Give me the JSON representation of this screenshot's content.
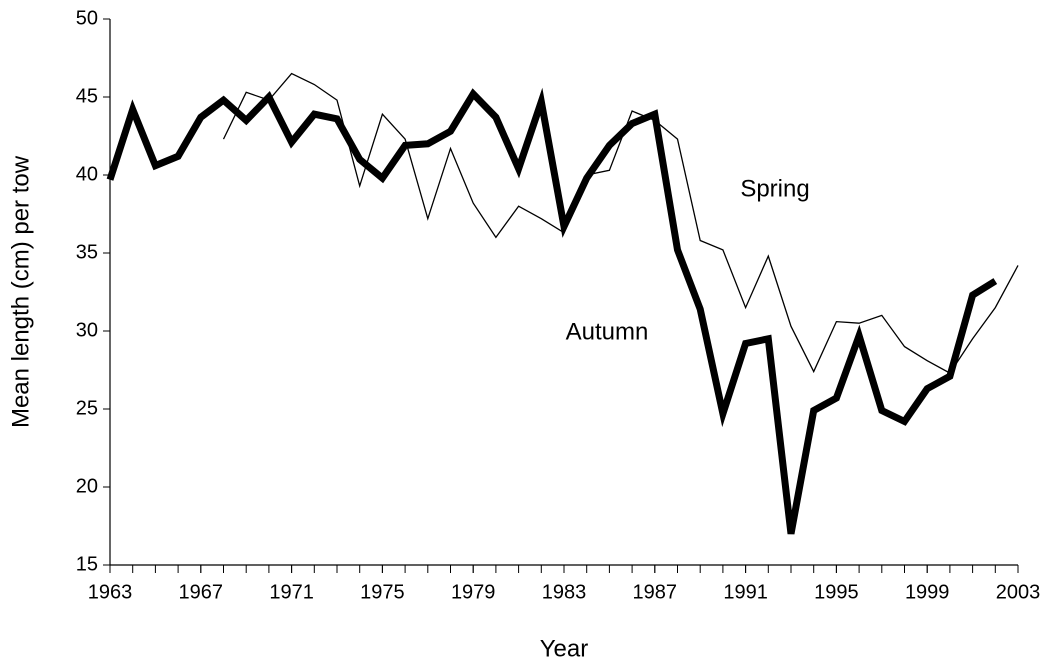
{
  "chart_data": {
    "type": "line",
    "x_label": "Year",
    "y_label": "Mean length (cm) per tow",
    "x": [
      1963,
      1964,
      1965,
      1966,
      1967,
      1968,
      1969,
      1970,
      1971,
      1972,
      1973,
      1974,
      1975,
      1976,
      1977,
      1978,
      1979,
      1980,
      1981,
      1982,
      1983,
      1984,
      1985,
      1986,
      1987,
      1988,
      1989,
      1990,
      1991,
      1992,
      1993,
      1994,
      1995,
      1996,
      1997,
      1998,
      1999,
      2000,
      2001,
      2002,
      2003
    ],
    "series": [
      {
        "name": "Spring",
        "color": "#000000",
        "width": "thin",
        "values": [
          null,
          null,
          null,
          null,
          null,
          42.3,
          45.3,
          44.8,
          46.5,
          45.8,
          44.8,
          39.3,
          43.9,
          42.3,
          37.2,
          41.7,
          38.2,
          36.0,
          38.0,
          37.2,
          36.3,
          40.0,
          40.3,
          44.1,
          43.5,
          42.3,
          35.8,
          35.2,
          31.5,
          34.8,
          30.3,
          27.4,
          30.6,
          30.5,
          31.0,
          29.0,
          28.1,
          27.3,
          29.5,
          31.5,
          34.2
        ]
      },
      {
        "name": "Autumn",
        "color": "#000000",
        "width": "thick",
        "values": [
          39.7,
          44.2,
          40.6,
          41.2,
          43.7,
          44.8,
          43.5,
          45.0,
          42.1,
          43.9,
          43.6,
          41.0,
          39.8,
          41.9,
          42.0,
          42.8,
          45.2,
          43.7,
          40.4,
          44.7,
          36.7,
          39.8,
          41.9,
          43.3,
          43.9,
          35.2,
          31.4,
          24.7,
          29.2,
          29.5,
          17.0,
          24.9,
          25.7,
          29.7,
          24.9,
          24.2,
          26.3,
          27.1,
          32.3,
          33.2,
          null
        ]
      }
    ],
    "xlim": [
      1963,
      2003
    ],
    "xticks": [
      1963,
      1967,
      1971,
      1975,
      1979,
      1983,
      1987,
      1991,
      1995,
      1999,
      2003
    ],
    "ylim": [
      15,
      50
    ],
    "yticks": [
      15,
      20,
      25,
      30,
      35,
      40,
      45,
      50
    ],
    "grid": false
  }
}
